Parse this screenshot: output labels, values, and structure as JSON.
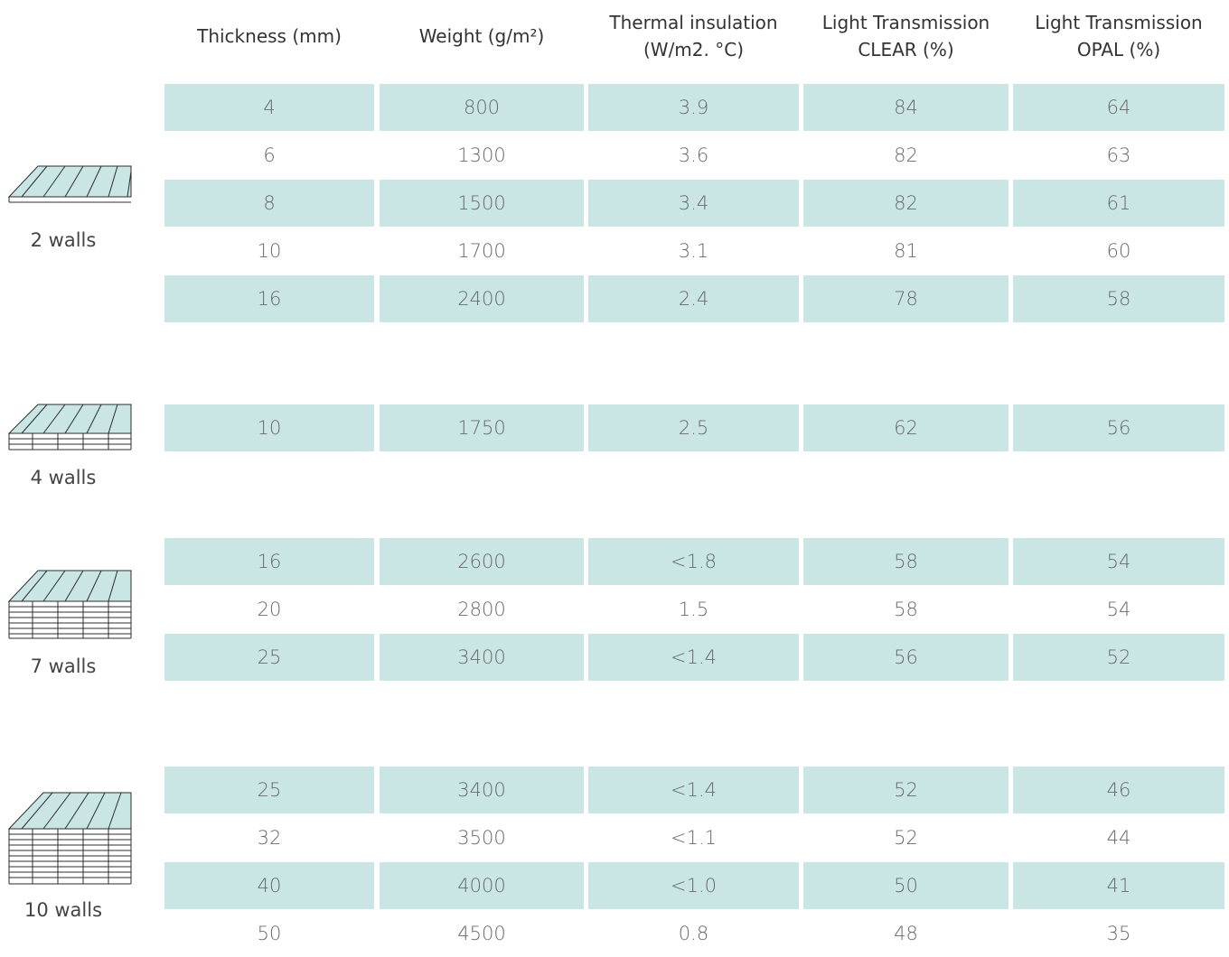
{
  "headers": [
    [
      "Thickness (mm)"
    ],
    [
      "Weight (g/m²)"
    ],
    [
      "Thermal insulation",
      "(W/m2. °C)"
    ],
    [
      "Light Transmission",
      "CLEAR (%)"
    ],
    [
      "Light Transmission",
      "OPAL (%)"
    ]
  ],
  "groups": [
    {
      "label": "2 walls",
      "rows": [
        [
          4,
          800,
          3.9,
          84,
          64
        ],
        [
          6,
          1300,
          3.6,
          82,
          63
        ],
        [
          8,
          1500,
          3.4,
          82,
          61
        ],
        [
          10,
          1700,
          3.1,
          81,
          60
        ],
        [
          16,
          2400,
          2.4,
          78,
          58
        ]
      ]
    },
    {
      "label": "4 walls",
      "rows": [
        [
          10,
          1750,
          2.5,
          62,
          56
        ]
      ]
    },
    {
      "label": "7 walls",
      "rows": [
        [
          16,
          2600,
          "<1.8",
          58,
          54
        ],
        [
          20,
          2800,
          1.5,
          58,
          54
        ],
        [
          25,
          3400,
          "<1.4",
          56,
          52
        ]
      ]
    },
    {
      "label": "10 walls",
      "rows": [
        [
          25,
          3400,
          "<1.4",
          52,
          46
        ],
        [
          32,
          3500,
          "<1.1",
          52,
          44
        ],
        [
          40,
          4000,
          "<1.0",
          50,
          41
        ],
        [
          50,
          4500,
          0.8,
          48,
          35
        ]
      ]
    }
  ]
}
